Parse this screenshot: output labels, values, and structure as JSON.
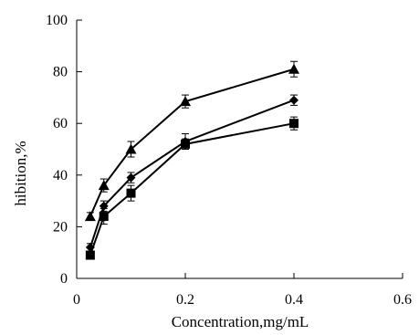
{
  "chart_data": {
    "type": "scatter",
    "title": "",
    "xlabel": "Concentration,mg/mL",
    "ylabel": "hibition,%",
    "xlim": [
      0,
      0.6
    ],
    "ylim": [
      0,
      100
    ],
    "x_ticks": [
      0,
      0.2,
      0.4,
      0.6
    ],
    "x_tick_labels": [
      "0",
      "0.2",
      "0.4",
      "0.6"
    ],
    "y_ticks": [
      0,
      20,
      40,
      60,
      80,
      100
    ],
    "y_tick_labels": [
      "0",
      "20",
      "40",
      "60",
      "80",
      "100"
    ],
    "grid": false,
    "legend": "none",
    "series": [
      {
        "marker": "triangle",
        "color": "#000000",
        "x": [
          0.025,
          0.05,
          0.1,
          0.2,
          0.4
        ],
        "y": [
          24,
          36,
          50,
          68.5,
          81
        ],
        "err": [
          1.5,
          2.5,
          3,
          2.5,
          3
        ]
      },
      {
        "marker": "diamond",
        "color": "#000000",
        "x": [
          0.025,
          0.05,
          0.1,
          0.2,
          0.4
        ],
        "y": [
          12,
          28,
          39,
          53,
          69
        ],
        "err": [
          1.5,
          2,
          2,
          3,
          2
        ]
      },
      {
        "marker": "square",
        "color": "#000000",
        "x": [
          0.025,
          0.05,
          0.1,
          0.2,
          0.4
        ],
        "y": [
          9,
          24,
          33,
          52,
          60
        ],
        "err": [
          1.5,
          3,
          3,
          2,
          2.5
        ]
      }
    ]
  }
}
